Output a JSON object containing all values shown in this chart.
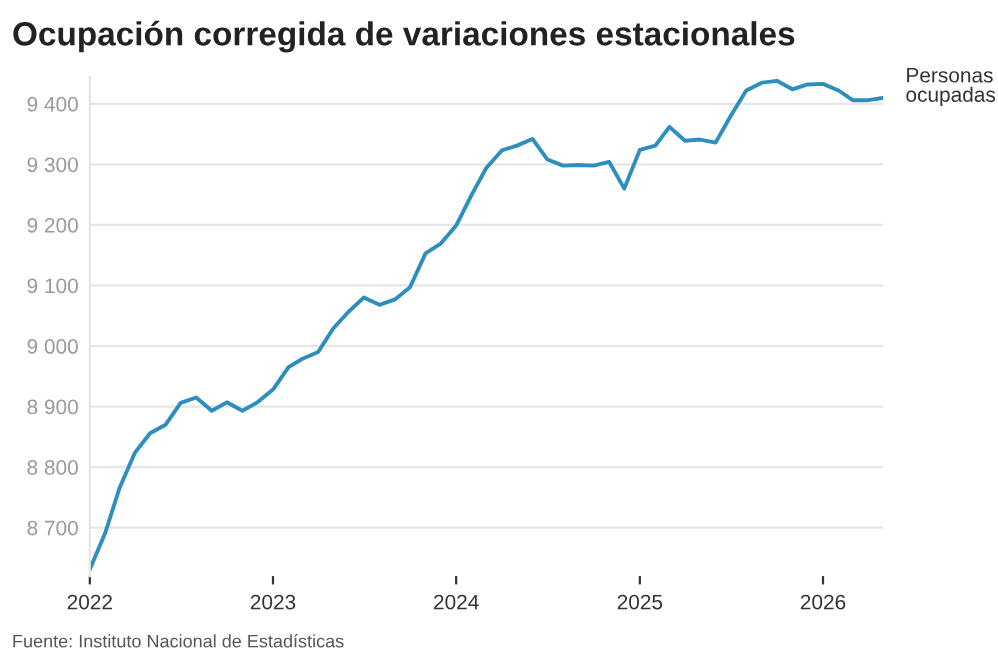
{
  "chart_data": {
    "type": "line",
    "title": "Ocupación corregida de variaciones estacionales",
    "x": [
      "2022-01",
      "2022-02",
      "2022-03",
      "2022-04",
      "2022-05",
      "2022-06",
      "2022-07",
      "2022-08",
      "2022-09",
      "2022-10",
      "2022-11",
      "2022-12",
      "2023-01",
      "2023-02",
      "2023-03",
      "2023-04",
      "2023-05",
      "2023-06",
      "2023-07",
      "2023-08",
      "2023-09",
      "2023-10",
      "2023-11",
      "2023-12",
      "2024-01",
      "2024-02",
      "2024-03",
      "2024-04",
      "2024-05",
      "2024-06",
      "2024-07",
      "2024-08",
      "2024-09",
      "2024-10",
      "2024-11",
      "2024-12",
      "2025-01",
      "2025-02",
      "2025-03",
      "2025-04",
      "2025-05",
      "2025-06",
      "2025-07",
      "2025-08",
      "2025-09",
      "2025-10",
      "2025-11",
      "2025-12",
      "2026-01",
      "2026-02",
      "2026-03",
      "2026-04",
      "2026-05"
    ],
    "series": [
      {
        "name": "Personas ocupadas",
        "color": "#2e8fbf",
        "values": [
          8631,
          8692,
          8765,
          8824,
          8856,
          8870,
          8906,
          8915,
          8893,
          8907,
          8893,
          8907,
          8928,
          8965,
          8979,
          8990,
          9029,
          9057,
          9080,
          9068,
          9077,
          9097,
          9153,
          9169,
          9199,
          9250,
          9294,
          9323,
          9331,
          9342,
          9308,
          9298,
          9299,
          9298,
          9304,
          9260,
          9324,
          9331,
          9362,
          9339,
          9341,
          9336,
          9380,
          9422,
          9435,
          9438,
          9424,
          9432,
          9433,
          9422,
          9406,
          9406,
          9410
        ]
      }
    ],
    "xlim": [
      "2022-01",
      "2026-05"
    ],
    "xticks": [
      {
        "value": "2022-01",
        "label": "2022"
      },
      {
        "value": "2023-01",
        "label": "2023"
      },
      {
        "value": "2024-01",
        "label": "2024"
      },
      {
        "value": "2025-01",
        "label": "2025"
      },
      {
        "value": "2026-01",
        "label": "2026"
      }
    ],
    "ylim": [
      8620,
      9445
    ],
    "yticks": [
      {
        "value": 8700,
        "label": "8 700"
      },
      {
        "value": 8800,
        "label": "8 800"
      },
      {
        "value": 8900,
        "label": "8 900"
      },
      {
        "value": 9000,
        "label": "9 000"
      },
      {
        "value": 9100,
        "label": "9 100"
      },
      {
        "value": 9200,
        "label": "9 200"
      },
      {
        "value": 9300,
        "label": "9 300"
      },
      {
        "value": 9400,
        "label": "9 400"
      }
    ],
    "grid": "y",
    "legend": false,
    "marker": "none",
    "line_style": "solid",
    "annotations": [
      "Fuente: Instituto Nacional de Estadísticas"
    ]
  }
}
